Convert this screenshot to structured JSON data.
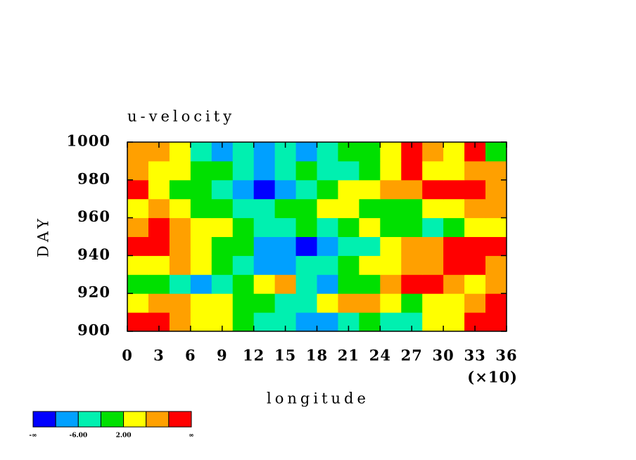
{
  "chart_data": {
    "type": "heatmap",
    "title": "u-velocity",
    "xlabel": "longitude",
    "xscale_label": "(×10)",
    "ylabel": "DAY",
    "xlim": [
      0,
      36
    ],
    "xticks": [
      0,
      3,
      6,
      9,
      12,
      15,
      18,
      21,
      24,
      27,
      30,
      33,
      36
    ],
    "ylim": [
      900,
      1000
    ],
    "yticks": [
      900,
      920,
      940,
      960,
      980,
      1000
    ],
    "x": [
      1,
      3,
      5,
      7,
      9,
      11,
      13,
      15,
      17,
      19,
      21,
      23,
      25,
      27,
      29,
      31,
      33,
      35
    ],
    "y": [
      905,
      915,
      925,
      935,
      945,
      955,
      965,
      975,
      985,
      995
    ],
    "z": [
      [
        10,
        12,
        8,
        4,
        2,
        -2,
        -6,
        -4,
        -8,
        -10,
        -4,
        0,
        -6,
        -4,
        2,
        4,
        10,
        12
      ],
      [
        4,
        6,
        8,
        4,
        2,
        0,
        -2,
        -4,
        -6,
        2,
        6,
        8,
        4,
        0,
        2,
        4,
        8,
        10
      ],
      [
        0,
        -2,
        -4,
        -10,
        -6,
        0,
        4,
        6,
        -6,
        -8,
        -2,
        0,
        6,
        10,
        12,
        8,
        4,
        6
      ],
      [
        2,
        4,
        6,
        4,
        -2,
        -6,
        -8,
        -10,
        -6,
        -4,
        -2,
        2,
        4,
        6,
        6,
        10,
        12,
        8
      ],
      [
        10,
        12,
        6,
        2,
        0,
        -2,
        -8,
        -10,
        -12,
        -8,
        -6,
        -4,
        2,
        6,
        8,
        10,
        12,
        10
      ],
      [
        8,
        10,
        8,
        4,
        2,
        0,
        -4,
        -6,
        -2,
        -4,
        0,
        2,
        0,
        -2,
        -4,
        0,
        4,
        2
      ],
      [
        4,
        6,
        2,
        0,
        -2,
        -4,
        -6,
        -2,
        0,
        2,
        4,
        0,
        -2,
        0,
        2,
        4,
        8,
        6
      ],
      [
        10,
        4,
        0,
        -2,
        -4,
        -8,
        -12,
        -8,
        -4,
        0,
        2,
        4,
        6,
        8,
        12,
        12,
        10,
        8
      ],
      [
        6,
        2,
        4,
        0,
        -2,
        -4,
        -10,
        -6,
        -2,
        -4,
        -6,
        -2,
        4,
        10,
        2,
        4,
        6,
        8
      ],
      [
        8,
        6,
        2,
        -6,
        -8,
        -4,
        -8,
        -6,
        -10,
        -4,
        0,
        -2,
        4,
        10,
        8,
        4,
        10,
        0
      ]
    ],
    "levels": [
      -10,
      -6,
      -2,
      2,
      6,
      10
    ],
    "colors": [
      "#0000ff",
      "#00a0ff",
      "#00f0b0",
      "#00e000",
      "#ffff00",
      "#ffa000",
      "#ff0000"
    ],
    "colorbar": {
      "ends": [
        "-∞",
        "∞"
      ],
      "ticks": [
        {
          "value": -6,
          "label": "-6.00"
        },
        {
          "value": 2,
          "label": "2.00"
        }
      ]
    }
  }
}
